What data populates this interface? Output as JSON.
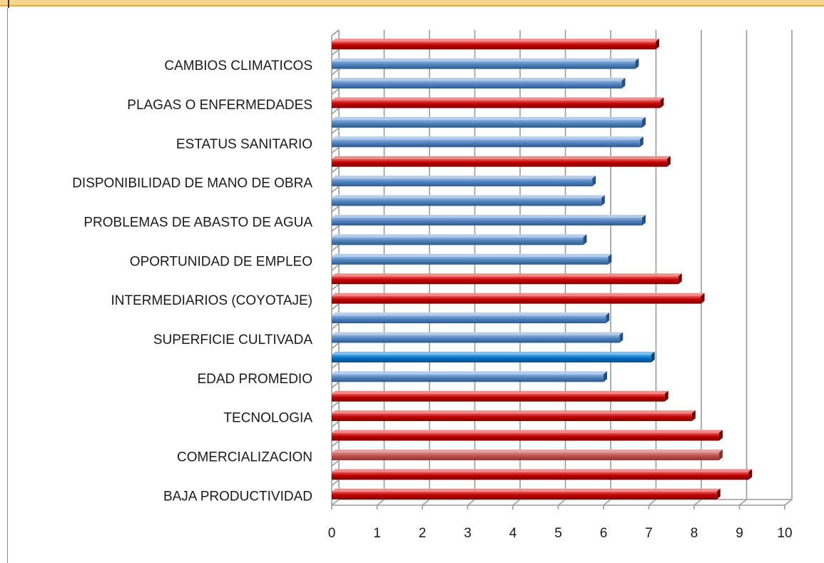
{
  "chart_data": {
    "type": "bar",
    "orientation": "horizontal",
    "title": "",
    "xlabel": "",
    "ylabel": "",
    "xlim": [
      0,
      10
    ],
    "grid": true,
    "legend": "none",
    "categories": [
      "BAJA PRODUCTIVIDAD",
      "",
      "COMERCIALIZACION",
      "",
      "TECNOLOGIA",
      "",
      "EDAD PROMEDIO",
      "",
      "SUPERFICIE CULTIVADA",
      "",
      "INTERMEDIARIOS (COYOTAJE)",
      "",
      "OPORTUNIDAD DE EMPLEO",
      "",
      "PROBLEMAS DE ABASTO DE AGUA",
      "",
      "DISPONIBILIDAD DE MANO DE OBRA",
      "",
      "ESTATUS SANITARIO",
      "",
      "PLAGAS O ENFERMEDADES",
      "",
      "CAMBIOS CLIMATICOS",
      ""
    ],
    "values": [
      8.5,
      9.2,
      8.55,
      8.55,
      7.95,
      7.35,
      6.0,
      7.05,
      6.35,
      6.05,
      8.15,
      7.65,
      6.1,
      5.55,
      6.85,
      5.95,
      5.75,
      7.4,
      6.8,
      6.85,
      7.25,
      6.4,
      6.7,
      7.15
    ],
    "colors": [
      "#c00000",
      "#c00000",
      "#c0504d",
      "#c00000",
      "#c00000",
      "#c00000",
      "#4f81bd",
      "#0070c0",
      "#4f81bd",
      "#4f81bd",
      "#c00000",
      "#c00000",
      "#4f81bd",
      "#4f81bd",
      "#4f81bd",
      "#4f81bd",
      "#4f81bd",
      "#c00000",
      "#4f81bd",
      "#4f81bd",
      "#c00000",
      "#4f81bd",
      "#4f81bd",
      "#c00000"
    ],
    "x_ticks": [
      "0",
      "1",
      "2",
      "3",
      "4",
      "5",
      "6",
      "7",
      "8",
      "9",
      "10"
    ]
  }
}
